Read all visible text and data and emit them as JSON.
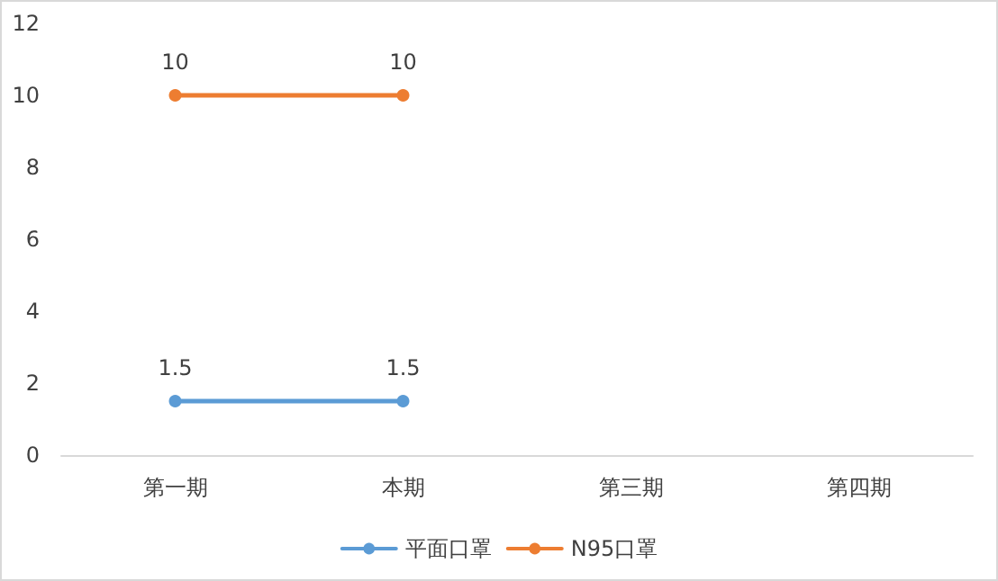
{
  "chart_data": {
    "type": "line",
    "categories": [
      "第一期",
      "本期",
      "第三期",
      "第四期"
    ],
    "series": [
      {
        "name": "平面口罩",
        "color": "#5b9bd5",
        "values": [
          1.5,
          1.5,
          null,
          null
        ]
      },
      {
        "name": "N95口罩",
        "color": "#ed7d31",
        "values": [
          10,
          10,
          null,
          null
        ]
      }
    ],
    "ylim": [
      0,
      12
    ],
    "yticks": [
      0,
      2,
      4,
      6,
      8,
      10,
      12
    ],
    "grid": false,
    "legend": "bottom",
    "data_labels": true,
    "marker": "circle",
    "line_style": "solid"
  }
}
